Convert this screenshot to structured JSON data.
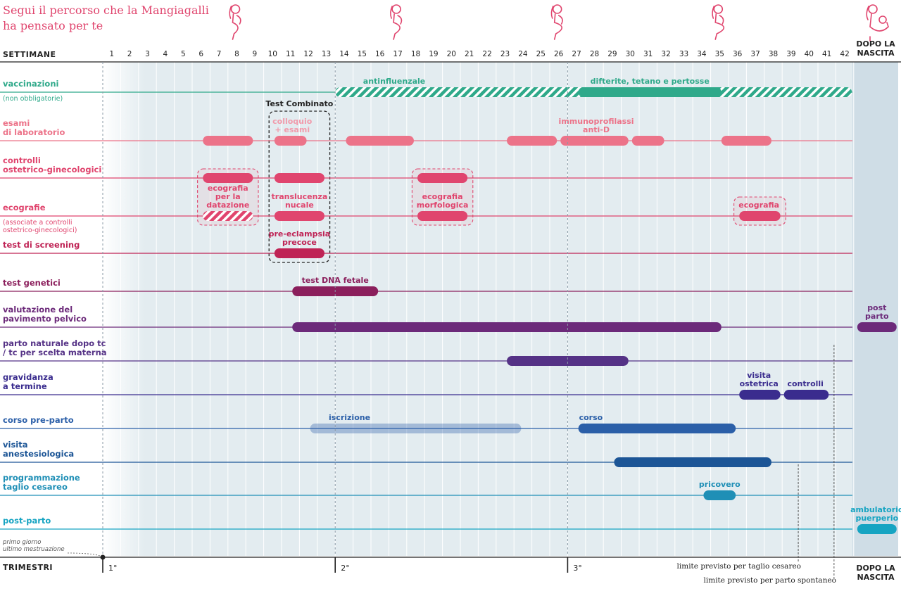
{
  "title_lines": [
    "Segui il percorso che la Mangiagalli",
    "ha pensato per te"
  ],
  "weeks_label": "SETTIMANE",
  "trimesters_label": "TRIMESTRI",
  "after_birth_label": [
    "DOPO LA",
    "NASCITA"
  ],
  "first_day_note": [
    "primo giorno",
    "ultimo mestruazione"
  ],
  "trimesters": [
    {
      "label": "1°",
      "week": 0
    },
    {
      "label": "2°",
      "week": 13
    },
    {
      "label": "3°",
      "week": 26
    }
  ],
  "limits": [
    {
      "label": "limite previsto per taglio cesareo",
      "week": 38.9
    },
    {
      "label": "limite previsto per parto spontaneo",
      "week": 40.9
    }
  ],
  "combined_test_label": "Test Combinato",
  "colors": {
    "teal": "#2fa98a",
    "light_pink": "#ec7389",
    "pink": "#e0456e",
    "crimson": "#bf2355",
    "plum": "#8b1f5c",
    "purple": "#6c2a7a",
    "violet": "#553286",
    "indigo": "#3a2c8e",
    "blue": "#2b5fa8",
    "navy_blue": "#1c5596",
    "cyan": "#1f8fb6",
    "light_cyan": "#16a4c2",
    "after_panel": "#cfdde6",
    "grid_bg": "#e3ecf0"
  },
  "icons": [
    "pregnancy-icon-first",
    "pregnancy-icon-second",
    "pregnancy-icon-third",
    "pregnancy-icon-fourth",
    "mother-baby-icon"
  ],
  "rows": [
    {
      "label": [
        "vaccinazioni"
      ],
      "sub": [
        "(non obbligatorie)"
      ],
      "color": "#2fa98a",
      "y": 131,
      "bars": [
        {
          "start": 13,
          "end": 41.9,
          "style": "hatch",
          "label": "antinfluenzale",
          "label_week": 16.3,
          "label_pos": "above"
        },
        {
          "start": 26.6,
          "end": 34.6,
          "style": "solid",
          "label": "difterite, tetano e pertosse",
          "label_week": 30.6,
          "label_pos": "above"
        }
      ]
    },
    {
      "label": [
        "esami",
        "di laboratorio"
      ],
      "sub": [],
      "color": "#ec7389",
      "y": 200,
      "bars": [
        {
          "start": 5.6,
          "end": 8.4,
          "style": "solid"
        },
        {
          "start": 9.6,
          "end": 11.4,
          "style": "solid",
          "label": "colloquio\n+ esami",
          "label_week": 10.6,
          "label_pos": "above",
          "label_color": "#f19bab"
        },
        {
          "start": 13.6,
          "end": 17.4,
          "style": "solid"
        },
        {
          "start": 22.6,
          "end": 25.4,
          "style": "solid"
        },
        {
          "start": 25.6,
          "end": 29.4,
          "style": "solid",
          "label": "immunoprofilassi\nanti-D",
          "label_week": 27.6,
          "label_pos": "above"
        },
        {
          "start": 29.6,
          "end": 31.4,
          "style": "solid"
        },
        {
          "start": 34.6,
          "end": 37.4,
          "style": "solid"
        }
      ]
    },
    {
      "label": [
        "controlli",
        "ostetrico-ginecologici"
      ],
      "sub": [],
      "color": "#e0456e",
      "y": 253,
      "bars": [
        {
          "start": 5.6,
          "end": 8.4,
          "style": "solid"
        },
        {
          "start": 9.6,
          "end": 12.4,
          "style": "solid"
        },
        {
          "start": 17.6,
          "end": 20.4,
          "style": "solid"
        }
      ]
    },
    {
      "label": [
        "ecografie"
      ],
      "sub": [
        "(associate a controlli",
        "ostetrico-ginecologici)"
      ],
      "color": "#e0456e",
      "y": 307,
      "bars": [
        {
          "start": 5.6,
          "end": 8.4,
          "style": "hatch",
          "label": "ecografia\nper la\ndatazione",
          "label_week": 7,
          "label_pos": "above"
        },
        {
          "start": 9.6,
          "end": 12.4,
          "style": "solid",
          "label": "translucenza\nnucale",
          "label_week": 11,
          "label_pos": "above"
        },
        {
          "start": 17.6,
          "end": 20.4,
          "style": "solid",
          "label": "ecografia\nmorfologica",
          "label_week": 19,
          "label_pos": "above"
        },
        {
          "start": 35.6,
          "end": 37.9,
          "style": "solid",
          "label": "ecografia",
          "label_week": 36.7,
          "label_pos": "above"
        }
      ]
    },
    {
      "label": [
        "test di screening"
      ],
      "sub": [],
      "color": "#bf2355",
      "y": 360,
      "bars": [
        {
          "start": 9.6,
          "end": 12.4,
          "style": "solid",
          "label": "pre-eclampsia\nprecoce",
          "label_week": 11,
          "label_pos": "above"
        }
      ]
    },
    {
      "label": [
        "test genetici"
      ],
      "sub": [],
      "color": "#8b1f5c",
      "y": 414,
      "bars": [
        {
          "start": 10.6,
          "end": 15.4,
          "style": "solid",
          "label": "test DNA fetale",
          "label_week": 13,
          "label_pos": "above"
        }
      ]
    },
    {
      "label": [
        "valutazione del",
        "pavimento pelvico"
      ],
      "sub": [],
      "color": "#6c2a7a",
      "y": 465,
      "bars": [
        {
          "start": 10.6,
          "end": 34.6,
          "style": "solid"
        },
        {
          "start": 42.2,
          "end": 44.4,
          "style": "solid",
          "label": "post\nparto",
          "label_week": 43.3,
          "label_pos": "above"
        }
      ]
    },
    {
      "label": [
        "parto naturale dopo tc",
        "/ tc per scelta materna"
      ],
      "sub": [],
      "color": "#553286",
      "y": 513,
      "bars": [
        {
          "start": 22.6,
          "end": 29.4,
          "style": "solid"
        }
      ]
    },
    {
      "label": [
        "gravidanza",
        "a termine"
      ],
      "sub": [],
      "color": "#3a2c8e",
      "y": 561,
      "bars": [
        {
          "start": 35.6,
          "end": 37.9,
          "style": "solid",
          "label": "visita\nostetrica",
          "label_week": 36.7,
          "label_pos": "above"
        },
        {
          "start": 38.1,
          "end": 40.6,
          "style": "solid",
          "label": "controlli",
          "label_week": 39.3,
          "label_pos": "above"
        }
      ]
    },
    {
      "label": [
        "corso pre-parto"
      ],
      "sub": [],
      "color": "#2b5fa8",
      "y": 609,
      "bars": [
        {
          "start": 11.6,
          "end": 23.4,
          "style": "faded",
          "label": "iscrizione",
          "label_week": 13.8,
          "label_pos": "above"
        },
        {
          "start": 26.6,
          "end": 35.4,
          "style": "solid",
          "label": "corso",
          "label_week": 27.3,
          "label_pos": "above"
        }
      ]
    },
    {
      "label": [
        "visita",
        "anestesiologica"
      ],
      "sub": [],
      "color": "#1c5596",
      "y": 657,
      "bars": [
        {
          "start": 28.6,
          "end": 37.4,
          "style": "solid"
        }
      ]
    },
    {
      "label": [
        "programmazione",
        "taglio cesareo"
      ],
      "sub": [],
      "color": "#1f8fb6",
      "y": 704,
      "bars": [
        {
          "start": 33.6,
          "end": 35.4,
          "style": "solid",
          "label": "pricovero",
          "label_week": 34.5,
          "label_pos": "above"
        }
      ]
    },
    {
      "label": [
        "post-parto"
      ],
      "sub": [],
      "color": "#16a4c2",
      "y": 752,
      "bars": [
        {
          "start": 42.2,
          "end": 44.4,
          "style": "solid",
          "label": "ambulatorio\npuerperio",
          "label_week": 43.3,
          "label_pos": "above"
        }
      ]
    }
  ],
  "highlight_boxes": [
    {
      "start": 9.3,
      "end": 12.7,
      "y_top": 158,
      "y_bottom": 373,
      "color": "#222222",
      "label": "Test Combinato"
    },
    {
      "start": 5.3,
      "end": 8.7,
      "y_top": 240,
      "y_bottom": 320,
      "color": "#e0456e"
    },
    {
      "start": 17.3,
      "end": 20.7,
      "y_top": 240,
      "y_bottom": 320,
      "color": "#e0456e"
    },
    {
      "start": 35.3,
      "end": 38.2,
      "y_top": 280,
      "y_bottom": 320,
      "color": "#e0456e"
    }
  ]
}
